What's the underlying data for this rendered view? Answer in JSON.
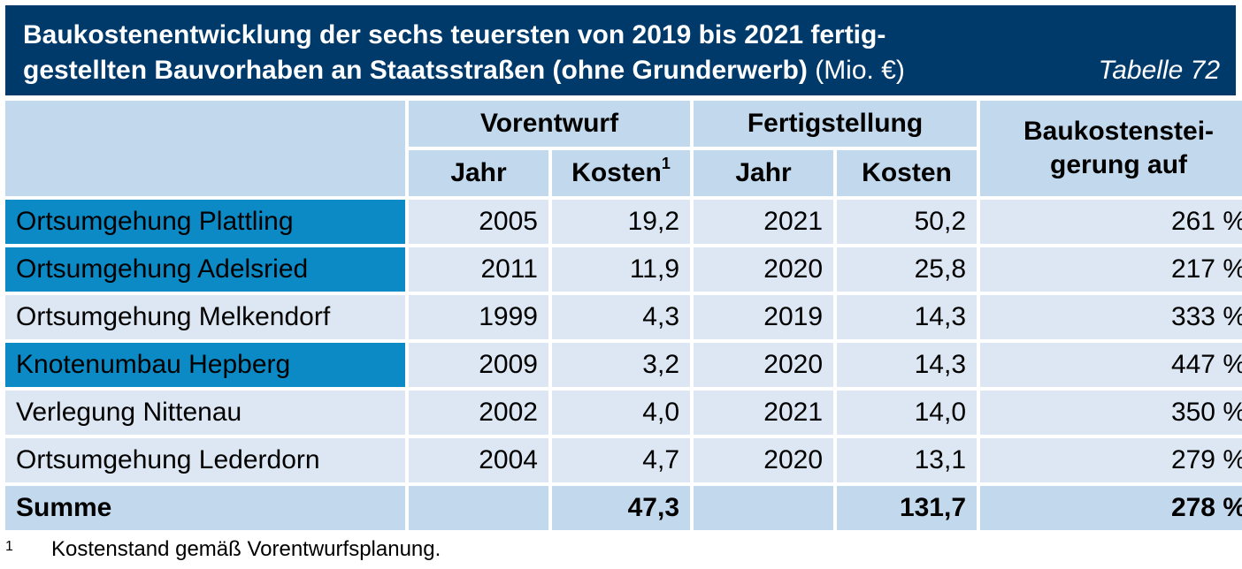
{
  "title": {
    "line1": "Baukostenentwicklung der sechs teuersten von 2019 bis 2021 fertig-",
    "line2": "gestellten Bauvorhaben an Staatsstraßen (ohne Grunderwerb)",
    "unit": "(Mio. €)",
    "table_no": "Tabelle 72"
  },
  "header": {
    "vorentwurf": "Vorentwurf",
    "fertigstellung": "Fertigstellung",
    "steigerung": "Baukostensteigerung auf",
    "steigerung_l1": "Baukostenstei-",
    "steigerung_l2": "gerung auf",
    "jahr": "Jahr",
    "kosten": "Kosten",
    "kosten_sup": "1"
  },
  "rows": [
    {
      "name": "Ortsumgehung Plattling",
      "v_jahr": "2005",
      "v_kosten": "19,2",
      "f_jahr": "2021",
      "f_kosten": "50,2",
      "steigerung": "261 %",
      "highlight": true
    },
    {
      "name": "Ortsumgehung Adelsried",
      "v_jahr": "2011",
      "v_kosten": "11,9",
      "f_jahr": "2020",
      "f_kosten": "25,8",
      "steigerung": "217 %",
      "highlight": true
    },
    {
      "name": "Ortsumgehung Melkendorf",
      "v_jahr": "1999",
      "v_kosten": "4,3",
      "f_jahr": "2019",
      "f_kosten": "14,3",
      "steigerung": "333 %",
      "highlight": false
    },
    {
      "name": "Knotenumbau Hepberg",
      "v_jahr": "2009",
      "v_kosten": "3,2",
      "f_jahr": "2020",
      "f_kosten": "14,3",
      "steigerung": "447 %",
      "highlight": true
    },
    {
      "name": "Verlegung Nittenau",
      "v_jahr": "2002",
      "v_kosten": "4,0",
      "f_jahr": "2021",
      "f_kosten": "14,0",
      "steigerung": "350 %",
      "highlight": false
    },
    {
      "name": "Ortsumgehung Lederdorn",
      "v_jahr": "2004",
      "v_kosten": "4,7",
      "f_jahr": "2020",
      "f_kosten": "13,1",
      "steigerung": "279 %",
      "highlight": false
    }
  ],
  "summe": {
    "label": "Summe",
    "v_kosten": "47,3",
    "f_kosten": "131,7",
    "steigerung": "278 %"
  },
  "footnote": {
    "num": "1",
    "text": "Kostenstand gemäß Vorentwurfsplanung."
  },
  "colors": {
    "title_bg": "#003a6b",
    "header_bg": "#c2d8ec",
    "cell_bg": "#dce7f3",
    "highlight_bg": "#0b8ac6"
  }
}
